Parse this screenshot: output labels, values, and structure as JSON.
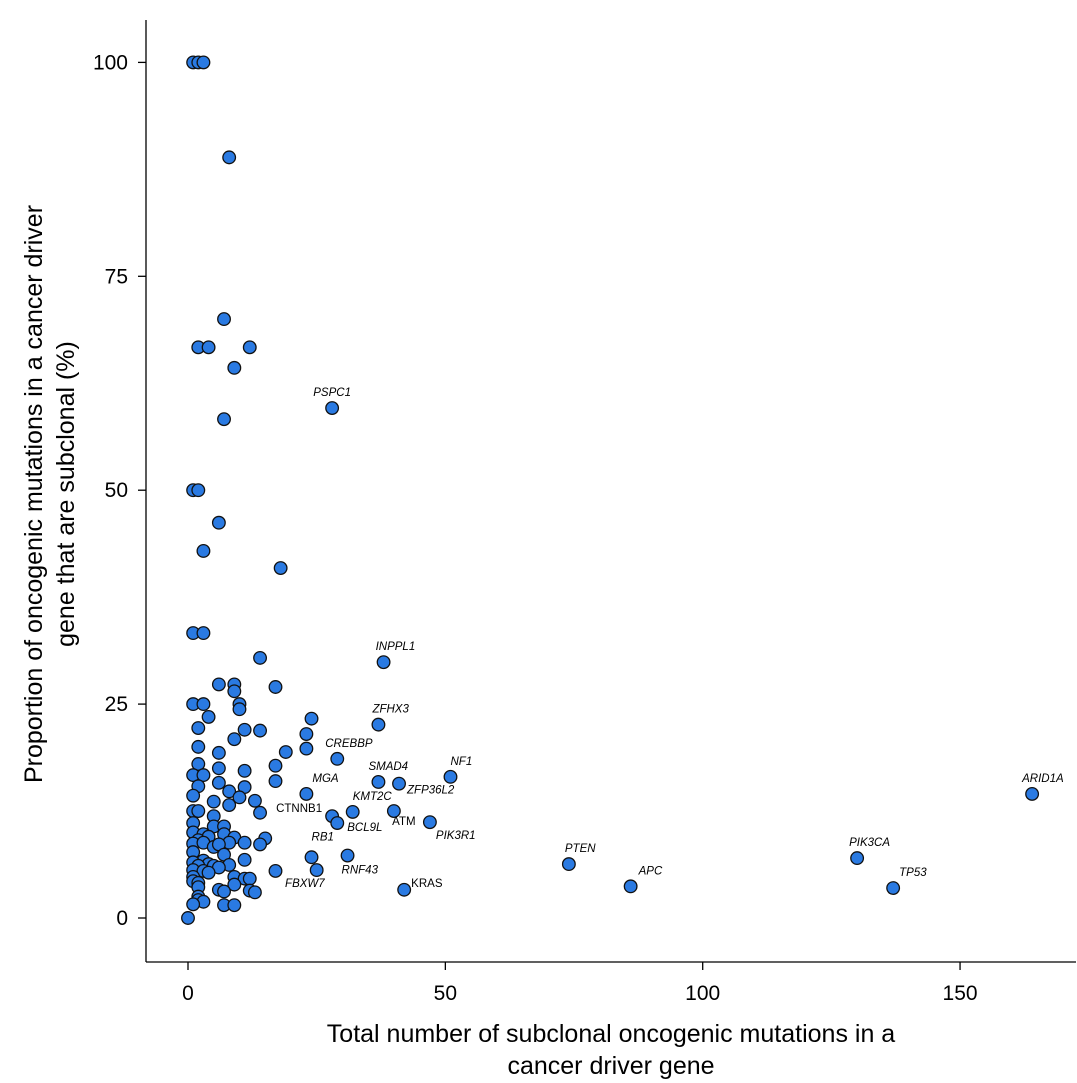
{
  "chart_data": {
    "type": "scatter",
    "xlabel": [
      "Total number of subclonal oncogenic mutations in a",
      "cancer driver gene"
    ],
    "ylabel": [
      "Proportion of oncogenic mutations in a cancer driver",
      "gene that are subclonal (%)"
    ],
    "xlim": [
      -8,
      172
    ],
    "ylim": [
      -5,
      105
    ],
    "x_ticks": [
      0,
      50,
      100,
      150
    ],
    "y_ticks": [
      0,
      25,
      50,
      75,
      100
    ],
    "x_tick_labels": [
      "0",
      "50",
      "100",
      "150"
    ],
    "y_tick_labels": [
      "0",
      "25",
      "50",
      "75",
      "100"
    ],
    "grid": false,
    "point_color": "#2a7ae2",
    "points": [
      {
        "x": 0,
        "y": 0
      },
      {
        "x": 1,
        "y": 100
      },
      {
        "x": 2,
        "y": 100
      },
      {
        "x": 3,
        "y": 100
      },
      {
        "x": 8,
        "y": 88.9
      },
      {
        "x": 7,
        "y": 70
      },
      {
        "x": 2,
        "y": 66.7
      },
      {
        "x": 4,
        "y": 66.7
      },
      {
        "x": 12,
        "y": 66.7
      },
      {
        "x": 9,
        "y": 64.3
      },
      {
        "x": 7,
        "y": 58.3
      },
      {
        "x": 1,
        "y": 50
      },
      {
        "x": 2,
        "y": 50
      },
      {
        "x": 6,
        "y": 46.2
      },
      {
        "x": 3,
        "y": 42.9
      },
      {
        "x": 18,
        "y": 40.9
      },
      {
        "x": 1,
        "y": 33.3
      },
      {
        "x": 3,
        "y": 33.3
      },
      {
        "x": 14,
        "y": 30.4
      },
      {
        "x": 6,
        "y": 27.3
      },
      {
        "x": 9,
        "y": 27.3
      },
      {
        "x": 17,
        "y": 27
      },
      {
        "x": 9,
        "y": 26.5
      },
      {
        "x": 1,
        "y": 25
      },
      {
        "x": 3,
        "y": 25
      },
      {
        "x": 10,
        "y": 25
      },
      {
        "x": 10,
        "y": 24.4
      },
      {
        "x": 4,
        "y": 23.5
      },
      {
        "x": 24,
        "y": 23.3
      },
      {
        "x": 2,
        "y": 22.2
      },
      {
        "x": 11,
        "y": 22
      },
      {
        "x": 14,
        "y": 21.9
      },
      {
        "x": 23,
        "y": 21.5
      },
      {
        "x": 9,
        "y": 20.9
      },
      {
        "x": 2,
        "y": 20
      },
      {
        "x": 23,
        "y": 19.8
      },
      {
        "x": 19,
        "y": 19.4
      },
      {
        "x": 6,
        "y": 19.3
      },
      {
        "x": 2,
        "y": 18
      },
      {
        "x": 17,
        "y": 17.8
      },
      {
        "x": 6,
        "y": 17.5
      },
      {
        "x": 11,
        "y": 17.2
      },
      {
        "x": 1,
        "y": 16.7
      },
      {
        "x": 3,
        "y": 16.7
      },
      {
        "x": 17,
        "y": 16
      },
      {
        "x": 2,
        "y": 15.4
      },
      {
        "x": 6,
        "y": 15.8
      },
      {
        "x": 11,
        "y": 15.3
      },
      {
        "x": 8,
        "y": 14.8
      },
      {
        "x": 1,
        "y": 14.3
      },
      {
        "x": 10,
        "y": 14.1
      },
      {
        "x": 5,
        "y": 13.6
      },
      {
        "x": 13,
        "y": 13.7
      },
      {
        "x": 8,
        "y": 13.2
      },
      {
        "x": 1,
        "y": 12.5
      },
      {
        "x": 2,
        "y": 12.5
      },
      {
        "x": 14,
        "y": 12.3
      },
      {
        "x": 5,
        "y": 11.9
      },
      {
        "x": 1,
        "y": 11.1
      },
      {
        "x": 5,
        "y": 10.7
      },
      {
        "x": 7,
        "y": 10.7
      },
      {
        "x": 1,
        "y": 10
      },
      {
        "x": 3,
        "y": 9.8
      },
      {
        "x": 7,
        "y": 9.8
      },
      {
        "x": 4,
        "y": 9.5
      },
      {
        "x": 2,
        "y": 9.1
      },
      {
        "x": 9,
        "y": 9.4
      },
      {
        "x": 15,
        "y": 9.3
      },
      {
        "x": 1,
        "y": 8.7
      },
      {
        "x": 3,
        "y": 8.8
      },
      {
        "x": 8,
        "y": 8.8
      },
      {
        "x": 11,
        "y": 8.8
      },
      {
        "x": 14,
        "y": 8.6
      },
      {
        "x": 5,
        "y": 8.3
      },
      {
        "x": 6,
        "y": 8.6
      },
      {
        "x": 1,
        "y": 7.7
      },
      {
        "x": 7,
        "y": 7.4
      },
      {
        "x": 3,
        "y": 6.7
      },
      {
        "x": 4,
        "y": 6.3
      },
      {
        "x": 1,
        "y": 6.5
      },
      {
        "x": 8,
        "y": 6.2
      },
      {
        "x": 11,
        "y": 6.8
      },
      {
        "x": 2,
        "y": 6.1
      },
      {
        "x": 5,
        "y": 6.1
      },
      {
        "x": 6,
        "y": 5.9
      },
      {
        "x": 1,
        "y": 5.6
      },
      {
        "x": 3,
        "y": 5.5
      },
      {
        "x": 17,
        "y": 5.5
      },
      {
        "x": 4,
        "y": 5.3
      },
      {
        "x": 9,
        "y": 4.8
      },
      {
        "x": 1,
        "y": 4.8
      },
      {
        "x": 11,
        "y": 4.6
      },
      {
        "x": 12,
        "y": 4.6
      },
      {
        "x": 1,
        "y": 4.3
      },
      {
        "x": 2,
        "y": 4.1
      },
      {
        "x": 9,
        "y": 3.9
      },
      {
        "x": 2,
        "y": 3.6
      },
      {
        "x": 6,
        "y": 3.3
      },
      {
        "x": 7,
        "y": 3.1
      },
      {
        "x": 12,
        "y": 3.2
      },
      {
        "x": 13,
        "y": 3
      },
      {
        "x": 2,
        "y": 2.5
      },
      {
        "x": 2,
        "y": 2.1
      },
      {
        "x": 3,
        "y": 1.9
      },
      {
        "x": 1,
        "y": 1.6
      },
      {
        "x": 7,
        "y": 1.5
      },
      {
        "x": 9,
        "y": 1.5
      }
    ],
    "labeled_points": [
      {
        "gene": "PSPC1",
        "x": 28,
        "y": 59.6,
        "italic": true,
        "anchor": "middle",
        "dx": 0,
        "dy": -12
      },
      {
        "gene": "INPPL1",
        "x": 38,
        "y": 29.9,
        "italic": true,
        "anchor": "start",
        "dx": -8,
        "dy": -12
      },
      {
        "gene": "ZFHX3",
        "x": 37,
        "y": 22.6,
        "italic": true,
        "anchor": "start",
        "dx": -6,
        "dy": -12
      },
      {
        "gene": "CREBBP",
        "x": 29,
        "y": 18.6,
        "italic": true,
        "anchor": "start",
        "dx": -12,
        "dy": -12
      },
      {
        "gene": "SMAD4",
        "x": 37,
        "y": 15.9,
        "italic": true,
        "anchor": "start",
        "dx": -10,
        "dy": -12
      },
      {
        "gene": "NF1",
        "x": 51,
        "y": 16.5,
        "italic": true,
        "anchor": "start",
        "dx": 0,
        "dy": -12
      },
      {
        "gene": "ZFP36L2",
        "x": 41,
        "y": 15.7,
        "italic": true,
        "anchor": "start",
        "dx": 8,
        "dy": 10
      },
      {
        "gene": "MGA",
        "x": 23,
        "y": 14.5,
        "italic": true,
        "anchor": "start",
        "dx": 6,
        "dy": -12
      },
      {
        "gene": "KMT2C",
        "x": 32,
        "y": 12.4,
        "italic": true,
        "anchor": "start",
        "dx": 0,
        "dy": -12
      },
      {
        "gene": "ATM",
        "x": 40,
        "y": 12.5,
        "italic": false,
        "anchor": "middle",
        "dx": 10,
        "dy": 14
      },
      {
        "gene": "CTNNB1",
        "x": 28,
        "y": 11.9,
        "italic": false,
        "anchor": "end",
        "dx": -10,
        "dy": -4
      },
      {
        "gene": "BCL9L",
        "x": 29,
        "y": 11.1,
        "italic": true,
        "anchor": "start",
        "dx": 10,
        "dy": 8
      },
      {
        "gene": "PIK3R1",
        "x": 47,
        "y": 11.2,
        "italic": true,
        "anchor": "start",
        "dx": 6,
        "dy": 17
      },
      {
        "gene": "RB1",
        "x": 24,
        "y": 7.1,
        "italic": true,
        "anchor": "start",
        "dx": 0,
        "dy": -17
      },
      {
        "gene": "RNF43",
        "x": 31,
        "y": 7.3,
        "italic": true,
        "anchor": "start",
        "dx": -6,
        "dy": 18
      },
      {
        "gene": "FBXW7",
        "x": 25,
        "y": 5.6,
        "italic": true,
        "anchor": "end",
        "dx": 8,
        "dy": 17
      },
      {
        "gene": "KRAS",
        "x": 42,
        "y": 3.3,
        "italic": false,
        "anchor": "start",
        "dx": 7,
        "dy": -3
      },
      {
        "gene": "PTEN",
        "x": 74,
        "y": 6.3,
        "italic": true,
        "anchor": "start",
        "dx": -4,
        "dy": -12
      },
      {
        "gene": "APC",
        "x": 86,
        "y": 3.7,
        "italic": true,
        "anchor": "start",
        "dx": 8,
        "dy": -12
      },
      {
        "gene": "PIK3CA",
        "x": 130,
        "y": 7,
        "italic": true,
        "anchor": "start",
        "dx": -8,
        "dy": -12
      },
      {
        "gene": "TP53",
        "x": 137,
        "y": 3.5,
        "italic": true,
        "anchor": "start",
        "dx": 6,
        "dy": -12
      },
      {
        "gene": "ARID1A",
        "x": 164,
        "y": 14.5,
        "italic": true,
        "anchor": "start",
        "dx": -10,
        "dy": -12
      }
    ]
  }
}
